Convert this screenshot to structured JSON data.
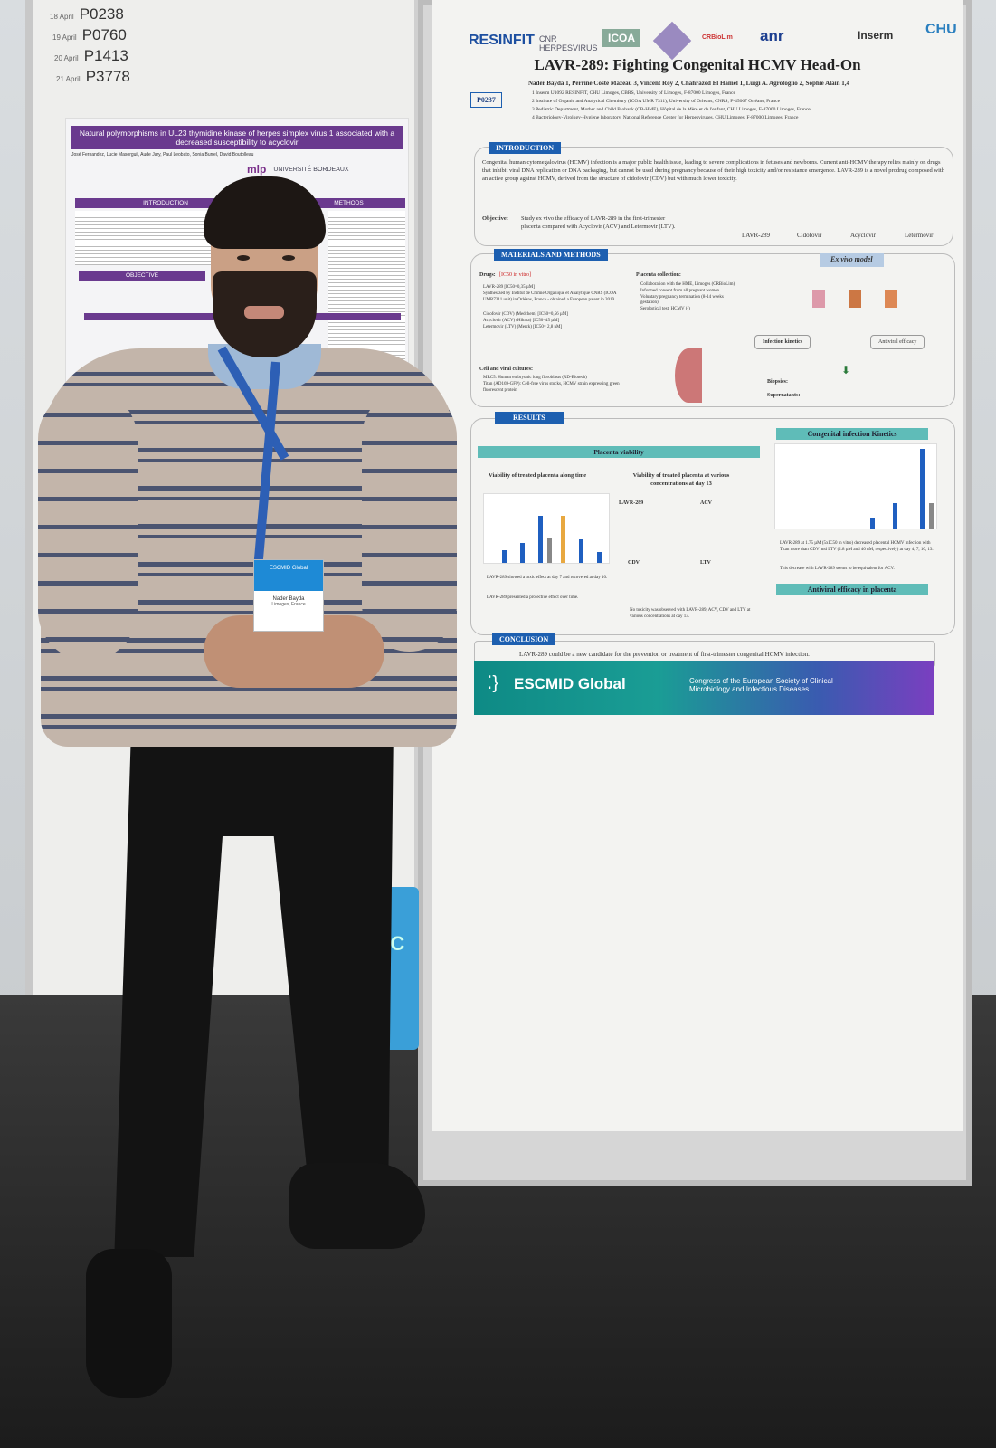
{
  "schedule": [
    {
      "date": "18 April",
      "code": "P0238"
    },
    {
      "date": "19 April",
      "code": "P0760"
    },
    {
      "date": "20 April",
      "code": "P1413"
    },
    {
      "date": "21 April",
      "code": "P3778"
    }
  ],
  "left_poster": {
    "title": "Natural polymorphisms in UL23 thymidine kinase of herpes simplex virus 1 associated with a decreased susceptibility to acyclovir",
    "authors": "José Fernandez, Lucie Masorguil, Aude Jary, Paul Leobato, Sonia Burrel, David Boutolleau",
    "sections": [
      "INTRODUCTION",
      "METHODS",
      "OBJECTIVE"
    ],
    "logos": [
      "mlp",
      "UNIVERSITÉ BORDEAUX"
    ]
  },
  "poster": {
    "logos": [
      "RESINFIT",
      "CNR HERPESVIRUS",
      "ICOA",
      "CRBioLim",
      "anr",
      "Inserm",
      "CHU"
    ],
    "id": "P0237",
    "title": "LAVR-289: Fighting Congenital HCMV Head-On",
    "authors": "Nader Bayda 1, Perrine Coste Mazeau 3, Vincent Roy 2, Chahrazed El Hamel 1, Luigi A. Agrofoglio 2, Sophie Alain 1,4",
    "affiliations": [
      "1 Inserm U1092 RESINFIT, CHU Limoges, CBRS, University of Limoges, F-87000 Limoges, France",
      "2 Institute of Organic and Analytical Chemistry (ICOA UMR 7311), University of Orleans, CNRS, F-45067 Orléans, France",
      "3 Pediatric Department, Mother and Child Biobank (CB-HME), Hôpital de la Mère et de l'enfant, CHU Limoges, F-87000 Limoges, France",
      "4 Bacteriology-Virology-Hygiene laboratory, National Reference Center for Herpesviruses, CHU Limoges, F-87000 Limoges, France"
    ],
    "introduction": {
      "heading": "INTRODUCTION",
      "text": "Congenital human cytomegalovirus (HCMV) infection is a major public health issue, leading to severe complications in fetuses and newborns. Current anti-HCMV therapy relies mainly on drugs that inhibit viral DNA replication or DNA packaging, but cannot be used during pregnancy because of their high toxicity and/or resistance emergence. LAVR-289 is a novel prodrug composed with an active group against HCMV, derived from the structure of cidofovir (CDV) but with much lower toxicity.",
      "objective_label": "Objective:",
      "objective": "Study ex vivo the efficacy of LAVR-289 in the first-trimester placenta compared with Acyclovir (ACV) and Letermovir (LTV).",
      "molecules": [
        "LAVR-289",
        "Cidofovir",
        "Acyclovir",
        "Letermovir"
      ]
    },
    "methods": {
      "heading": "MATERIALS AND METHODS",
      "drugs_label": "Drugs:",
      "drugs_note": "[IC50 in vitro]",
      "drugs": [
        "LAVR-289 [IC50=0,35 µM]",
        "Synthesized by Institut de Chimie Organique et Analytique CNRS (ICOA UMR7311 unit) in Orléans, France - obtained a European patent in 2019",
        "Cidofovir (CDV) (Medchem) [IC50=0,56 µM]",
        "Acyclovir (ACV) (Hikma) [IC50=45 µM]",
        "Letermovir (LTV) (Merck) [IC50= 2,8 nM]"
      ],
      "cells_label": "Cell and viral cultures:",
      "cells": [
        "MRC5: Human embryonic lung fibroblasts (RD-Biotech)",
        "Titan (AD169-GFP): Cell-free virus stocks, HCMV strain expressing green fluorescent protein"
      ],
      "placenta_label": "Placenta collection:",
      "placenta": [
        "Collaboration with the HME, Limoges (CRBioLim)",
        "Informed consent from all pregnant women",
        "Voluntary pregnancy termination (8-14 weeks gestation)",
        "Serological test: HCMV (-)"
      ],
      "model_title": "Ex vivo model",
      "kinetics": "Infection kinetics",
      "efficacy": "Antiviral efficacy",
      "biopsies": "Biopsies:",
      "supernatants": "Supernatants:"
    },
    "results": {
      "heading": "RESULTS",
      "placenta_viability": "Placenta viability",
      "chart1_title": "Viability of treated placenta along time",
      "chart2_title": "Viability of treated placenta at various concentrations at day 13",
      "subcharts": [
        "LAVR-289",
        "ACV",
        "CDV",
        "LTV"
      ],
      "notes_left": [
        "LAVR-289 showed a toxic effect at day 7 and recovered at day 10.",
        "LAVR-289 presented a protective effect over time."
      ],
      "notes_mid": "No toxicity was observed with LAVR-289, ACV, CDV and LTV at various concentrations at day 13.",
      "kinetics_title": "Congenital infection Kinetics",
      "kinetics_notes": [
        "LAVR-289 at 1.75 µM (5xIC50 in vitro) decreased placental HCMV infection with Titan more than CDV and LTV (2.8 µM and 40 nM, respectively) at day 4, 7, 10, 13.",
        "This decrease with LAVR-289 seems to be equivalent for ACV."
      ],
      "antiviral_title": "Antiviral efficacy in placenta"
    },
    "conclusion": {
      "heading": "CONCLUSION",
      "text": "LAVR-289 could be a new candidate for the prevention or treatment of first-trimester congenital HCMV infection."
    },
    "banner": {
      "brand": "ESCMID Global",
      "tagline": "Congress of the European Society of Clinical Microbiology and Infectious Diseases"
    }
  },
  "badge": {
    "header": "ESCMID Global",
    "name": "Nader Bayda",
    "city": "Limoges, France"
  },
  "bag_text": "ESC",
  "colors": {
    "poster_blue": "#1d5fb0",
    "teal": "#5fbcb8",
    "purple": "#6a3a8e"
  }
}
